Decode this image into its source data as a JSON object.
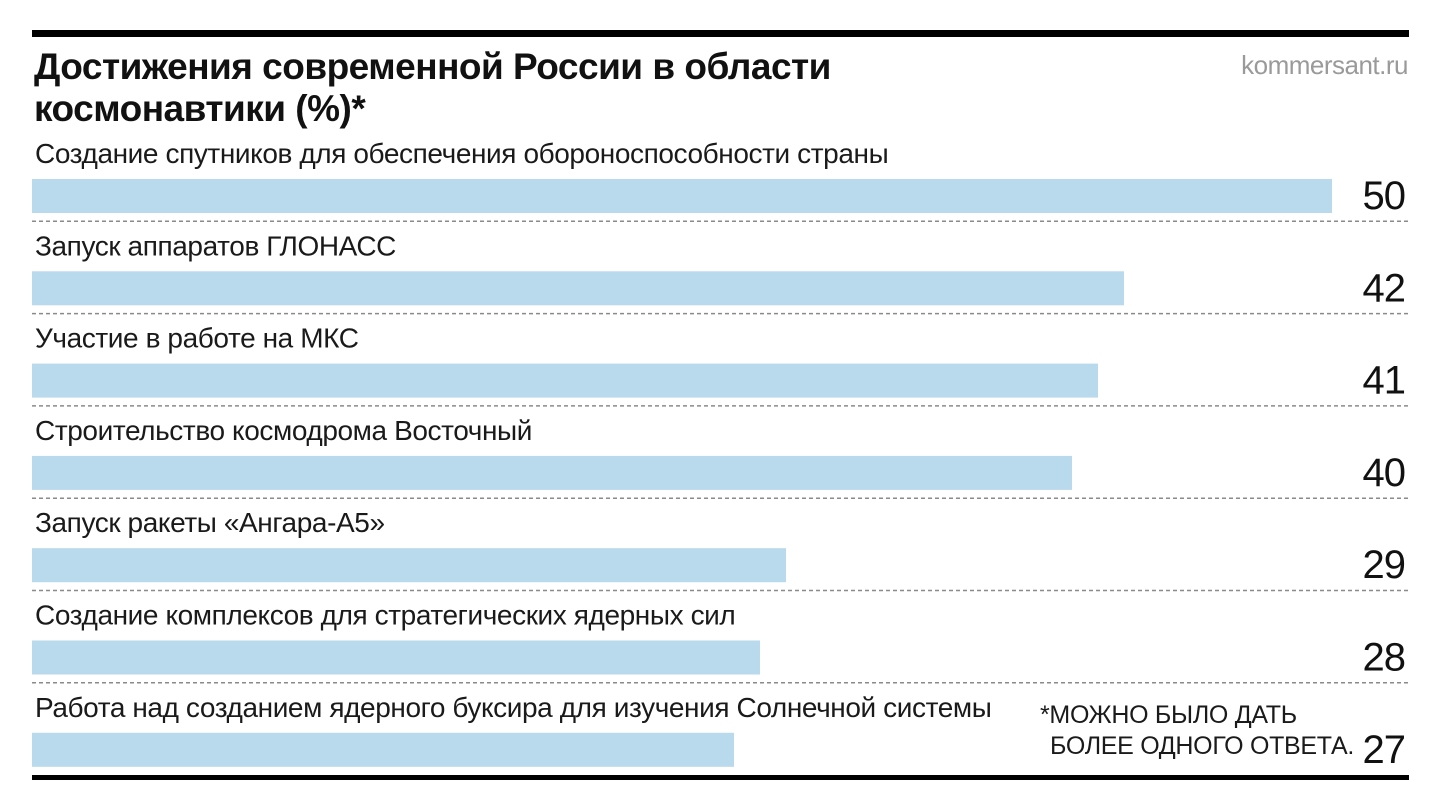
{
  "source": "kommersant.ru",
  "footnote": {
    "line1": "*МОЖНО БЫЛО ДАТЬ",
    "line2": "БОЛЕЕ ОДНОГО ОТВЕТА."
  },
  "colors": {
    "bar": "#b9d9ec",
    "rule": "#000000",
    "divider": "#8a8a8a"
  },
  "chart_data": {
    "type": "bar",
    "orientation": "horizontal",
    "title": "Достижения современной России в области космонавтики (%)*",
    "categories": [
      "Создание спутников для обеспечения обороноспособности страны",
      "Запуск аппаратов ГЛОНАСС",
      "Участие в работе на МКС",
      "Строительство космодрома Восточный",
      "Запуск ракеты «Ангара-А5»",
      "Создание комплексов для стратегических ядерных сил",
      "Работа над созданием ядерного буксира для изучения Солнечной системы"
    ],
    "values": [
      50,
      42,
      41,
      40,
      29,
      28,
      27
    ],
    "xlim": [
      0,
      50
    ],
    "xlabel": "",
    "ylabel": "",
    "grid": false
  }
}
